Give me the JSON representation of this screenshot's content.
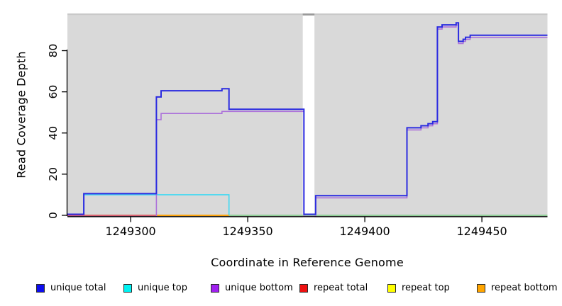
{
  "window": {
    "background": "#FFFFFF"
  },
  "chart_data": {
    "type": "line",
    "subtype": "step",
    "title": "",
    "xlabel": "Coordinate in Reference Genome",
    "ylabel": "Read Coverage Depth",
    "x_ticks": [
      1249300,
      1249350,
      1249400,
      1249450
    ],
    "y_ticks": [
      0,
      20,
      40,
      60,
      80
    ],
    "xlim": [
      1249273,
      1249478
    ],
    "ylim": [
      0,
      97.7
    ],
    "grid": false,
    "legend_position": "bottom",
    "plot_background": "#D9D9D9",
    "plot_top_edge_color": "#C9C9C9",
    "masked_region": {
      "x0": 1249373.5,
      "x1": 1249378.5,
      "color": "#FFFFFF",
      "cap_color": "#9A9A9A"
    },
    "series": [
      {
        "name": "repeat top",
        "color": "#FFD400",
        "width": 1.5,
        "dy": 0,
        "steps": [
          [
            1249273,
            0
          ]
        ],
        "end": 1249478
      },
      {
        "name": "unique top",
        "color": "#3FD9F2",
        "width": 1.6,
        "dy": 0,
        "steps": [
          [
            1249273,
            0
          ],
          [
            1249280,
            10
          ],
          [
            1249342,
            0
          ]
        ],
        "end": 1249478
      },
      {
        "name": "repeat total",
        "color": "#DC4356",
        "width": 1.4,
        "dy": 0,
        "steps": [
          [
            1249273,
            0
          ]
        ],
        "end": 1249311
      },
      {
        "name": "repeat bottom",
        "color": "#FF9D00",
        "width": 1.7,
        "dy": 0,
        "steps": [
          [
            1249311,
            0
          ]
        ],
        "end": 1249342
      },
      {
        "name": "unlabeled green",
        "color": "#8FCA8F",
        "width": 1.5,
        "dy": 0,
        "steps": [
          [
            1249342,
            0
          ]
        ],
        "end": 1249478
      },
      {
        "name": "unique bottom",
        "color": "#AC71DA",
        "width": 1.6,
        "dy": 1.5,
        "steps": [
          [
            1249273,
            0
          ],
          [
            1249311,
            47
          ],
          [
            1249313,
            50
          ],
          [
            1249339,
            51
          ],
          [
            1249374,
            0
          ],
          [
            1249379,
            9
          ],
          [
            1249418,
            42
          ],
          [
            1249424,
            43
          ],
          [
            1249427,
            44
          ],
          [
            1249429,
            45
          ],
          [
            1249431,
            91
          ],
          [
            1249433,
            92
          ],
          [
            1249439,
            93
          ],
          [
            1249440,
            84
          ],
          [
            1249442,
            85
          ],
          [
            1249443,
            86
          ],
          [
            1249445,
            87
          ]
        ],
        "end": 1249478
      },
      {
        "name": "unique total",
        "color": "#2B2BE0",
        "width": 2.0,
        "dy": -1.5,
        "steps": [
          [
            1249273,
            0
          ],
          [
            1249280,
            10
          ],
          [
            1249311,
            57
          ],
          [
            1249313,
            60
          ],
          [
            1249339,
            61
          ],
          [
            1249342,
            51
          ],
          [
            1249374,
            0
          ],
          [
            1249379,
            9
          ],
          [
            1249418,
            42
          ],
          [
            1249424,
            43
          ],
          [
            1249427,
            44
          ],
          [
            1249429,
            45
          ],
          [
            1249431,
            91
          ],
          [
            1249433,
            92
          ],
          [
            1249439,
            93
          ],
          [
            1249440,
            84
          ],
          [
            1249442,
            85
          ],
          [
            1249443,
            86
          ],
          [
            1249445,
            87
          ]
        ],
        "end": 1249478
      }
    ]
  },
  "legend": {
    "items": [
      {
        "label": "unique total",
        "color": "#0D0DEE"
      },
      {
        "label": "unique top",
        "color": "#00F2F2"
      },
      {
        "label": "unique bottom",
        "color": "#A020F0"
      },
      {
        "label": "repeat total",
        "color": "#EE1111"
      },
      {
        "label": "repeat top",
        "color": "#FFFF00"
      },
      {
        "label": "repeat bottom",
        "color": "#FFA500"
      }
    ]
  }
}
